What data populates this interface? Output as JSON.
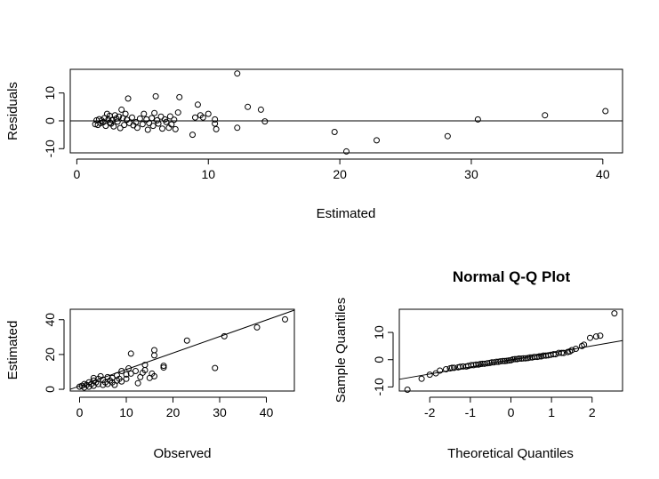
{
  "chart_data": [
    {
      "type": "scatter",
      "title": "",
      "xlabel": "Estimated",
      "ylabel": "Residuals",
      "xlim": [
        -0.5,
        41.5
      ],
      "ylim": [
        -11.5,
        18.5
      ],
      "xticks": [
        0,
        10,
        20,
        30,
        40
      ],
      "yticks": [
        -10,
        0,
        10
      ],
      "hline": 0,
      "grid": false,
      "points": [
        [
          1.4,
          -1.2
        ],
        [
          1.5,
          0.2
        ],
        [
          1.6,
          -1.5
        ],
        [
          1.7,
          0.6
        ],
        [
          1.8,
          -0.8
        ],
        [
          1.9,
          0.1
        ],
        [
          2.0,
          -0.5
        ],
        [
          2.1,
          1.0
        ],
        [
          2.2,
          -1.8
        ],
        [
          2.3,
          2.5
        ],
        [
          2.4,
          0.5
        ],
        [
          2.5,
          -0.6
        ],
        [
          2.5,
          1.8
        ],
        [
          2.6,
          -1.0
        ],
        [
          2.7,
          0.2
        ],
        [
          2.8,
          -2.0
        ],
        [
          2.9,
          2.0
        ],
        [
          3.0,
          0.8
        ],
        [
          3.1,
          -0.3
        ],
        [
          3.2,
          1.5
        ],
        [
          3.3,
          -2.6
        ],
        [
          3.4,
          4.0
        ],
        [
          3.5,
          1.0
        ],
        [
          3.6,
          -1.5
        ],
        [
          3.7,
          2.5
        ],
        [
          3.8,
          0.4
        ],
        [
          3.9,
          8.0
        ],
        [
          4.0,
          -0.8
        ],
        [
          4.2,
          1.2
        ],
        [
          4.3,
          -1.6
        ],
        [
          4.5,
          -0.5
        ],
        [
          4.6,
          -2.5
        ],
        [
          4.8,
          0.8
        ],
        [
          5.0,
          -1.2
        ],
        [
          5.1,
          2.5
        ],
        [
          5.3,
          0.5
        ],
        [
          5.4,
          -3.2
        ],
        [
          5.5,
          -0.8
        ],
        [
          5.7,
          1.0
        ],
        [
          5.8,
          -1.8
        ],
        [
          5.9,
          2.8
        ],
        [
          6.0,
          8.8
        ],
        [
          6.1,
          0.2
        ],
        [
          6.2,
          -1.0
        ],
        [
          6.4,
          1.5
        ],
        [
          6.5,
          -2.8
        ],
        [
          6.7,
          0.5
        ],
        [
          6.8,
          -0.4
        ],
        [
          7.0,
          -2.5
        ],
        [
          7.1,
          1.6
        ],
        [
          7.2,
          -1.3
        ],
        [
          7.4,
          0.4
        ],
        [
          7.5,
          -3.0
        ],
        [
          7.7,
          3.0
        ],
        [
          7.8,
          8.5
        ],
        [
          8.8,
          -5.0
        ],
        [
          9.0,
          1.2
        ],
        [
          9.2,
          5.8
        ],
        [
          9.4,
          2.0
        ],
        [
          9.6,
          1.2
        ],
        [
          10.0,
          2.5
        ],
        [
          10.5,
          -1.0
        ],
        [
          10.5,
          0.5
        ],
        [
          10.6,
          -3.0
        ],
        [
          12.2,
          17.0
        ],
        [
          12.2,
          -2.5
        ],
        [
          13.0,
          5.0
        ],
        [
          14.0,
          4.0
        ],
        [
          14.3,
          -0.2
        ],
        [
          19.6,
          -4.0
        ],
        [
          20.5,
          -11.0
        ],
        [
          22.8,
          -7.0
        ],
        [
          28.2,
          -5.5
        ],
        [
          30.5,
          0.5
        ],
        [
          35.6,
          2.0
        ],
        [
          40.2,
          3.5
        ]
      ]
    },
    {
      "type": "scatter",
      "title": "",
      "xlabel": "Observed",
      "ylabel": "Estimated",
      "xlim": [
        -2,
        46
      ],
      "ylim": [
        -1,
        46
      ],
      "xticks": [
        0,
        10,
        20,
        30,
        40
      ],
      "yticks": [
        0,
        20,
        40
      ],
      "fit_line": [
        [
          -2,
          0.0
        ],
        [
          46,
          45.5
        ]
      ],
      "grid": false,
      "points": [
        [
          0,
          1.5
        ],
        [
          0.5,
          2.0
        ],
        [
          1,
          1.0
        ],
        [
          1,
          3.0
        ],
        [
          1.5,
          2.5
        ],
        [
          2,
          1.5
        ],
        [
          2,
          4.0
        ],
        [
          2.5,
          3.0
        ],
        [
          3,
          2.0
        ],
        [
          3,
          5.0
        ],
        [
          3,
          6.5
        ],
        [
          3.5,
          4.0
        ],
        [
          4,
          3.0
        ],
        [
          4,
          6.0
        ],
        [
          4.5,
          7.5
        ],
        [
          5,
          2.5
        ],
        [
          5,
          5.5
        ],
        [
          5.5,
          4.0
        ],
        [
          6,
          3.0
        ],
        [
          6,
          7.0
        ],
        [
          6.5,
          5.0
        ],
        [
          7,
          4.0
        ],
        [
          7,
          6.5
        ],
        [
          7.5,
          2.5
        ],
        [
          8,
          5.0
        ],
        [
          8,
          8.0
        ],
        [
          8.5,
          6.0
        ],
        [
          9,
          4.5
        ],
        [
          9,
          10.5
        ],
        [
          10,
          6.0
        ],
        [
          10,
          8.5
        ],
        [
          10.5,
          12.0
        ],
        [
          11,
          9.0
        ],
        [
          11,
          20.5
        ],
        [
          12,
          10.5
        ],
        [
          12.5,
          3.5
        ],
        [
          13,
          7.0
        ],
        [
          13.5,
          9.5
        ],
        [
          14,
          14.0
        ],
        [
          14,
          11.0
        ],
        [
          15,
          6.5
        ],
        [
          15.5,
          9.0
        ],
        [
          16,
          22.5
        ],
        [
          16,
          19.5
        ],
        [
          16,
          7.5
        ],
        [
          18,
          12.5
        ],
        [
          18,
          13.5
        ],
        [
          23,
          28.0
        ],
        [
          29,
          12.2
        ],
        [
          31,
          30.5
        ],
        [
          38,
          35.6
        ],
        [
          44,
          40.2
        ]
      ]
    },
    {
      "type": "scatter",
      "title": "Normal Q-Q Plot",
      "xlabel": "Theoretical Quantiles",
      "ylabel": "Sample Quantiles",
      "xlim": [
        -2.75,
        2.75
      ],
      "ylim": [
        -11.5,
        18.5
      ],
      "xticks": [
        -2,
        -1,
        0,
        1,
        2
      ],
      "yticks": [
        -10,
        0,
        10
      ],
      "qq_line": [
        [
          -2.75,
          -7.2
        ],
        [
          2.75,
          7.0
        ]
      ],
      "grid": false,
      "points": [
        [
          -2.55,
          -11.0
        ],
        [
          -2.2,
          -7.0
        ],
        [
          -2.0,
          -5.5
        ],
        [
          -1.85,
          -5.0
        ],
        [
          -1.75,
          -4.0
        ],
        [
          -1.6,
          -3.5
        ],
        [
          -1.5,
          -3.2
        ],
        [
          -1.45,
          -3.0
        ],
        [
          -1.4,
          -3.0
        ],
        [
          -1.3,
          -2.8
        ],
        [
          -1.25,
          -2.6
        ],
        [
          -1.18,
          -2.5
        ],
        [
          -1.1,
          -2.5
        ],
        [
          -1.05,
          -2.3
        ],
        [
          -0.98,
          -2.0
        ],
        [
          -0.92,
          -2.0
        ],
        [
          -0.86,
          -1.8
        ],
        [
          -0.8,
          -1.8
        ],
        [
          -0.75,
          -1.6
        ],
        [
          -0.7,
          -1.5
        ],
        [
          -0.65,
          -1.5
        ],
        [
          -0.58,
          -1.3
        ],
        [
          -0.52,
          -1.2
        ],
        [
          -0.47,
          -1.0
        ],
        [
          -0.42,
          -1.0
        ],
        [
          -0.36,
          -0.8
        ],
        [
          -0.31,
          -0.8
        ],
        [
          -0.26,
          -0.6
        ],
        [
          -0.2,
          -0.5
        ],
        [
          -0.15,
          -0.5
        ],
        [
          -0.1,
          -0.4
        ],
        [
          -0.05,
          -0.3
        ],
        [
          0.0,
          -0.2
        ],
        [
          0.05,
          0.1
        ],
        [
          0.1,
          0.2
        ],
        [
          0.15,
          0.2
        ],
        [
          0.2,
          0.4
        ],
        [
          0.26,
          0.4
        ],
        [
          0.31,
          0.5
        ],
        [
          0.36,
          0.5
        ],
        [
          0.42,
          0.6
        ],
        [
          0.47,
          0.8
        ],
        [
          0.52,
          0.8
        ],
        [
          0.58,
          1.0
        ],
        [
          0.65,
          1.0
        ],
        [
          0.7,
          1.2
        ],
        [
          0.75,
          1.2
        ],
        [
          0.8,
          1.5
        ],
        [
          0.86,
          1.5
        ],
        [
          0.92,
          1.6
        ],
        [
          0.98,
          1.8
        ],
        [
          1.05,
          2.0
        ],
        [
          1.1,
          2.0
        ],
        [
          1.18,
          2.5
        ],
        [
          1.25,
          2.5
        ],
        [
          1.3,
          2.5
        ],
        [
          1.4,
          2.8
        ],
        [
          1.45,
          3.0
        ],
        [
          1.5,
          3.5
        ],
        [
          1.6,
          4.0
        ],
        [
          1.75,
          5.0
        ],
        [
          1.8,
          5.5
        ],
        [
          1.95,
          8.0
        ],
        [
          2.1,
          8.5
        ],
        [
          2.2,
          8.8
        ],
        [
          2.55,
          17.0
        ]
      ]
    }
  ]
}
